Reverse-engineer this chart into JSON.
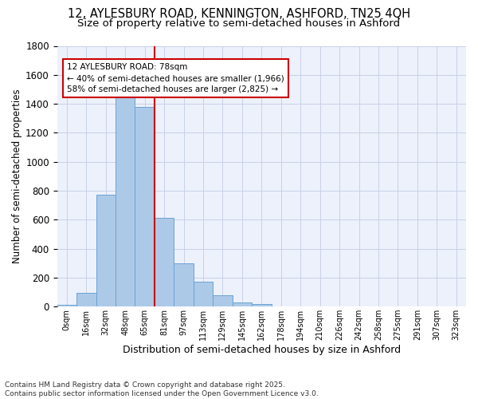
{
  "title_line1": "12, AYLESBURY ROAD, KENNINGTON, ASHFORD, TN25 4QH",
  "title_line2": "Size of property relative to semi-detached houses in Ashford",
  "xlabel": "Distribution of semi-detached houses by size in Ashford",
  "ylabel": "Number of semi-detached properties",
  "footer": "Contains HM Land Registry data © Crown copyright and database right 2025.\nContains public sector information licensed under the Open Government Licence v3.0.",
  "bin_labels": [
    "0sqm",
    "16sqm",
    "32sqm",
    "48sqm",
    "65sqm",
    "81sqm",
    "97sqm",
    "113sqm",
    "129sqm",
    "145sqm",
    "162sqm",
    "178sqm",
    "194sqm",
    "210sqm",
    "226sqm",
    "242sqm",
    "258sqm",
    "275sqm",
    "291sqm",
    "307sqm",
    "323sqm"
  ],
  "bar_values": [
    10,
    95,
    775,
    1445,
    1380,
    610,
    300,
    170,
    80,
    30,
    20,
    0,
    0,
    0,
    0,
    0,
    0,
    0,
    0,
    0,
    0
  ],
  "bar_color": "#adc9e8",
  "bar_edge_color": "#6aa3d4",
  "vline_x": 5.0,
  "annotation_title": "12 AYLESBURY ROAD: 78sqm",
  "annotation_line1": "← 40% of semi-detached houses are smaller (1,966)",
  "annotation_line2": "58% of semi-detached houses are larger (2,825) →",
  "annotation_box_color": "#ffffff",
  "annotation_box_edge": "#cc0000",
  "vline_color": "#cc0000",
  "ylim": [
    0,
    1800
  ],
  "yticks": [
    0,
    200,
    400,
    600,
    800,
    1000,
    1200,
    1400,
    1600,
    1800
  ],
  "bg_color": "#edf1fb",
  "grid_color": "#c8d0e8",
  "title_fontsize": 10.5,
  "subtitle_fontsize": 9.5,
  "footer_fontsize": 6.5
}
